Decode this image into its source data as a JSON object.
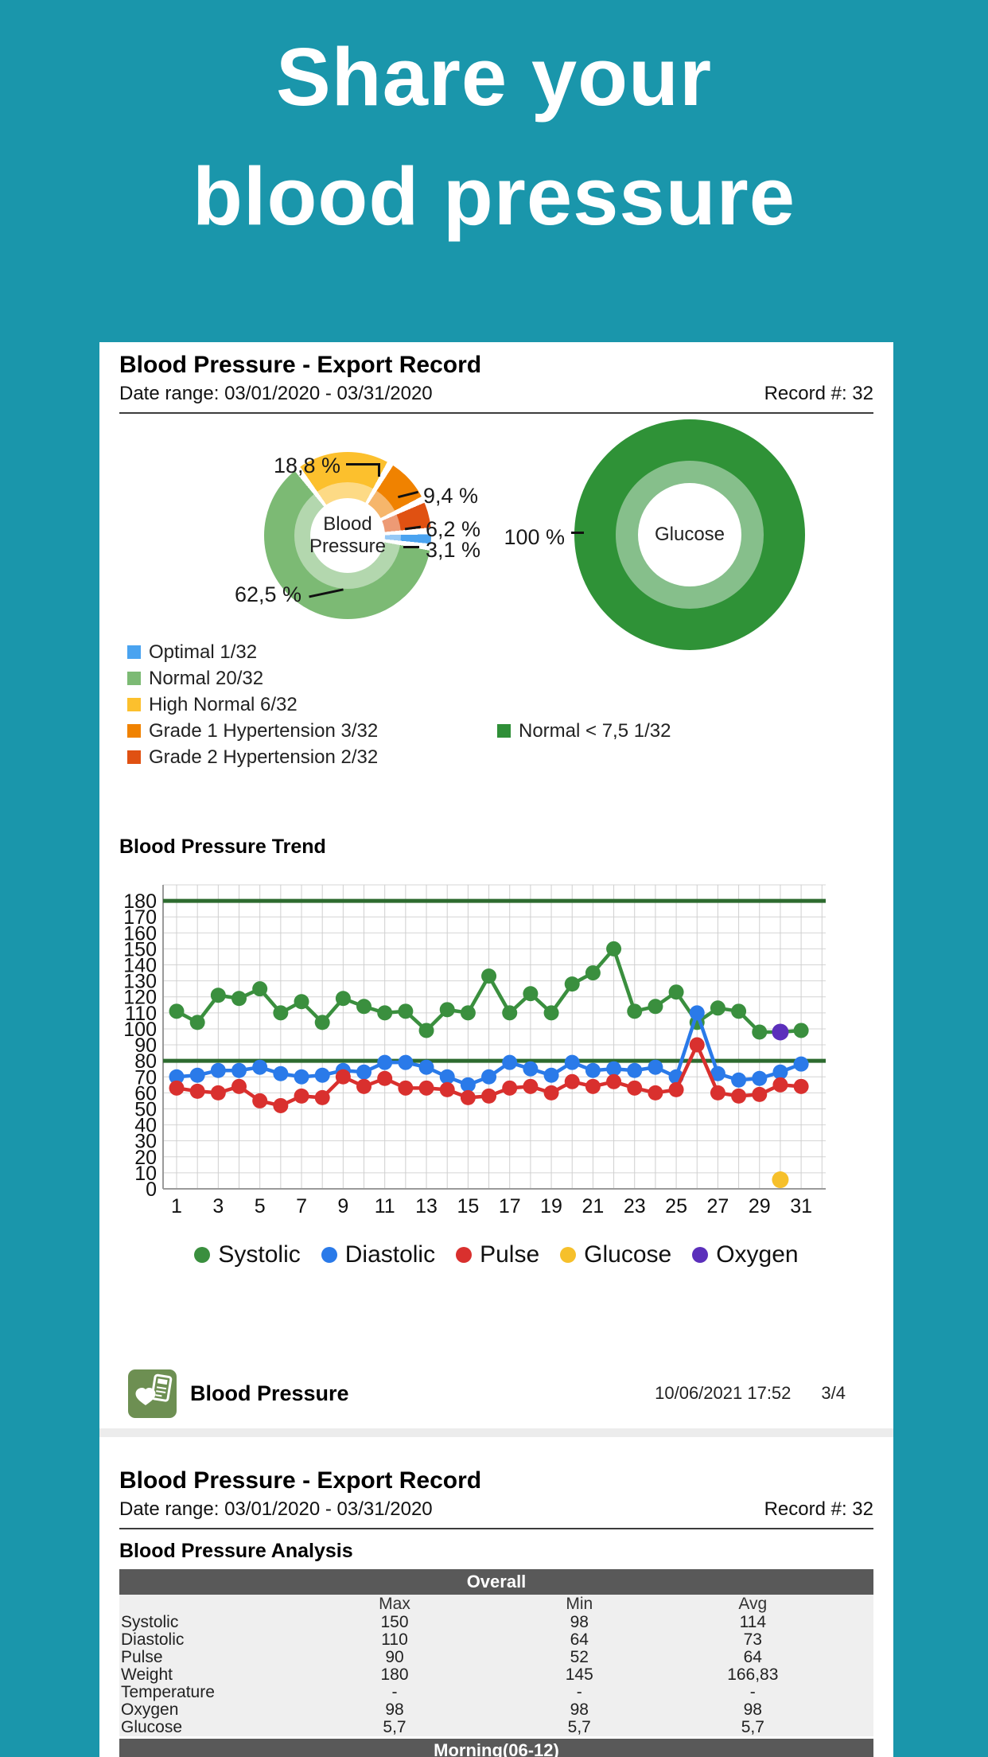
{
  "hero": {
    "line1": "Share your",
    "line2": "blood pressure"
  },
  "report": {
    "title": "Blood Pressure - Export Record",
    "date_range": "Date range: 03/01/2020 - 03/31/2020",
    "record_count": "Record #: 32"
  },
  "footer": {
    "app_name": "Blood Pressure",
    "app_icon": "heart-clipboard-icon",
    "timestamp": "10/06/2021 17:52",
    "page_indicator": "3/4"
  },
  "analysis": {
    "section_title": "Blood Pressure Analysis",
    "overall_header": "Overall",
    "morning_header": "Morning(06-12)",
    "columns": [
      "Max",
      "Min",
      "Avg"
    ],
    "rows": [
      {
        "label": "Systolic",
        "max": "150",
        "min": "98",
        "avg": "114"
      },
      {
        "label": "Diastolic",
        "max": "110",
        "min": "64",
        "avg": "73"
      },
      {
        "label": "Pulse",
        "max": "90",
        "min": "52",
        "avg": "64"
      },
      {
        "label": "Weight",
        "max": "180",
        "min": "145",
        "avg": "166,83"
      },
      {
        "label": "Temperature",
        "max": "-",
        "min": "-",
        "avg": "-"
      },
      {
        "label": "Oxygen",
        "max": "98",
        "min": "98",
        "avg": "98"
      },
      {
        "label": "Glucose",
        "max": "5,7",
        "min": "5,7",
        "avg": "5,7"
      }
    ]
  },
  "chart_data": [
    {
      "type": "pie",
      "title": "Blood Pressure",
      "start_angle_deg": -37,
      "slices": [
        {
          "label": "High Normal",
          "count": "6/32",
          "pct": 18.8,
          "pct_label": "18,8 %",
          "color": "#fcc02d"
        },
        {
          "label": "Grade 1 Hypertension",
          "count": "3/32",
          "pct": 9.4,
          "pct_label": "9,4 %",
          "color": "#f08200"
        },
        {
          "label": "Grade 2 Hypertension",
          "count": "2/32",
          "pct": 6.2,
          "pct_label": "6,2 %",
          "color": "#e05112"
        },
        {
          "label": "Optimal",
          "count": "1/32",
          "pct": 3.1,
          "pct_label": "3,1 %",
          "color": "#4aa3f0"
        },
        {
          "label": "Normal",
          "count": "20/32",
          "pct": 62.5,
          "pct_label": "62,5 %",
          "color": "#7cba74"
        }
      ],
      "legend": [
        {
          "label": "Optimal 1/32",
          "color": "#4aa3f0"
        },
        {
          "label": "Normal 20/32",
          "color": "#7cba74"
        },
        {
          "label": "High Normal 6/32",
          "color": "#fcc02d"
        },
        {
          "label": "Grade 1 Hypertension 3/32",
          "color": "#f08200"
        },
        {
          "label": "Grade 2 Hypertension 2/32",
          "color": "#e05112"
        }
      ]
    },
    {
      "type": "pie",
      "title": "Glucose",
      "start_angle_deg": 0,
      "slices": [
        {
          "label": "Normal < 7,5",
          "count": "1/32",
          "pct": 100,
          "pct_label": "100 %",
          "color": "#2f9237"
        }
      ],
      "legend": [
        {
          "label": "Normal < 7,5 1/32",
          "color": "#2f8f38"
        }
      ]
    },
    {
      "type": "line",
      "title": "Blood Pressure Trend",
      "x_ticks": [
        1,
        3,
        5,
        7,
        9,
        11,
        13,
        15,
        17,
        19,
        21,
        23,
        25,
        27,
        29,
        31
      ],
      "x_range": [
        1,
        31
      ],
      "y_ticks_step": 10,
      "y_label_max": 180,
      "ylim": [
        0,
        190
      ],
      "grid": true,
      "reference_lines": [
        {
          "value": 180,
          "color": "#2d6b2f"
        },
        {
          "value": 80,
          "color": "#2d6b2f"
        }
      ],
      "days": [
        1,
        2,
        3,
        4,
        5,
        6,
        7,
        8,
        9,
        10,
        11,
        12,
        13,
        14,
        15,
        16,
        17,
        18,
        19,
        20,
        21,
        22,
        23,
        24,
        25,
        26,
        27,
        28,
        29,
        30,
        31
      ],
      "series": [
        {
          "name": "Systolic",
          "color": "#3a8f3e",
          "values": [
            111,
            104,
            121,
            119,
            125,
            110,
            117,
            104,
            119,
            114,
            110,
            111,
            99,
            112,
            110,
            133,
            110,
            122,
            110,
            128,
            135,
            150,
            111,
            114,
            123,
            104,
            113,
            111,
            98,
            98,
            99
          ]
        },
        {
          "name": "Diastolic",
          "color": "#2a7ae9",
          "values": [
            70,
            71,
            74,
            74,
            76,
            72,
            70,
            71,
            74,
            73,
            79,
            79,
            76,
            70,
            65,
            70,
            79,
            75,
            71,
            79,
            74,
            75,
            74,
            76,
            70,
            110,
            72,
            68,
            69,
            73,
            78
          ]
        },
        {
          "name": "Pulse",
          "color": "#d9302e",
          "values": [
            63,
            61,
            60,
            64,
            55,
            52,
            58,
            57,
            70,
            64,
            69,
            63,
            63,
            62,
            57,
            58,
            63,
            64,
            60,
            67,
            64,
            67,
            63,
            60,
            62,
            90,
            60,
            58,
            59,
            65,
            64
          ]
        }
      ],
      "points": [
        {
          "name": "Glucose",
          "color": "#f6c02b",
          "day": 30,
          "value": 5.7
        },
        {
          "name": "Oxygen",
          "color": "#5b2fbb",
          "day": 30,
          "value": 98
        }
      ],
      "legend_position": "bottom"
    }
  ]
}
